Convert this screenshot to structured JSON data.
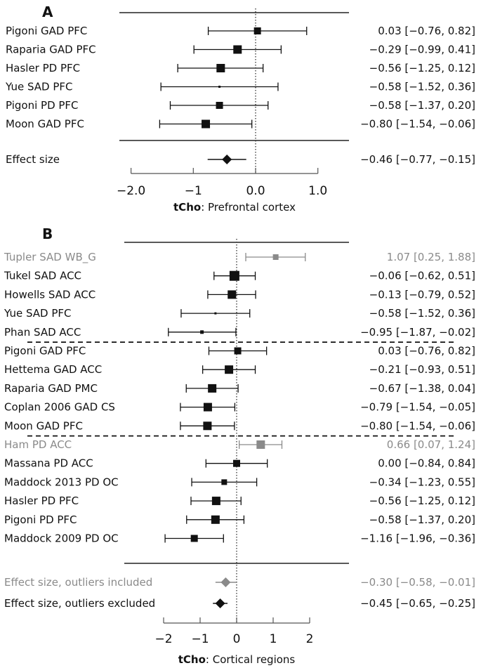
{
  "chart_data": [
    {
      "type": "forest",
      "panel_label": "A",
      "xlabel_bold": "tCho",
      "xlabel_rest": ": Prefrontal cortex",
      "xlim": [
        -2.0,
        1.0
      ],
      "ticks": [
        {
          "value": -2.0,
          "label": "−2.0"
        },
        {
          "value": -1.0,
          "label": "−1"
        },
        {
          "value": 0.0,
          "label": "0.0"
        },
        {
          "value": 1.0,
          "label": "1.0"
        }
      ],
      "reference_line": 0,
      "studies": [
        {
          "label": "Pigoni GAD PFC",
          "est": 0.03,
          "lo": -0.76,
          "hi": 0.82,
          "text": "0.03 [−0.76, 0.82]",
          "weight": "medium",
          "outlier": false
        },
        {
          "label": "Raparia GAD PFC",
          "est": -0.29,
          "lo": -0.99,
          "hi": 0.41,
          "text": "−0.29 [−0.99, 0.41]",
          "weight": "large",
          "outlier": false
        },
        {
          "label": "Hasler PD PFC",
          "est": -0.56,
          "lo": -1.25,
          "hi": 0.12,
          "text": "−0.56 [−1.25, 0.12]",
          "weight": "large",
          "outlier": false
        },
        {
          "label": "Yue SAD PFC",
          "est": -0.58,
          "lo": -1.52,
          "hi": 0.36,
          "text": "−0.58 [−1.52, 0.36]",
          "weight": "tiny",
          "outlier": false
        },
        {
          "label": "Pigoni PD PFC",
          "est": -0.58,
          "lo": -1.37,
          "hi": 0.2,
          "text": "−0.58 [−1.37, 0.20]",
          "weight": "medium",
          "outlier": false
        },
        {
          "label": "Moon GAD PFC",
          "est": -0.8,
          "lo": -1.54,
          "hi": -0.06,
          "text": "−0.80 [−1.54, −0.06]",
          "weight": "large",
          "outlier": false
        }
      ],
      "group_separators_after": [],
      "summaries": [
        {
          "label": "Effect size",
          "est": -0.46,
          "lo": -0.77,
          "hi": -0.15,
          "text": "−0.46 [−0.77, −0.15]",
          "gray": false
        }
      ]
    },
    {
      "type": "forest",
      "panel_label": "B",
      "xlabel_bold": "tCho",
      "xlabel_rest": ": Cortical regions",
      "xlim": [
        -2,
        2
      ],
      "ticks": [
        {
          "value": -2,
          "label": "−2"
        },
        {
          "value": -1,
          "label": "−1"
        },
        {
          "value": 0,
          "label": "0"
        },
        {
          "value": 1,
          "label": "1"
        },
        {
          "value": 2,
          "label": "2"
        }
      ],
      "reference_line": 0,
      "studies": [
        {
          "label": "Tupler SAD WB_G",
          "est": 1.07,
          "lo": 0.25,
          "hi": 1.88,
          "text": "1.07 [0.25, 1.88]",
          "weight": "small",
          "outlier": true
        },
        {
          "label": "Tukel SAD ACC",
          "est": -0.06,
          "lo": -0.62,
          "hi": 0.51,
          "text": "−0.06 [−0.62, 0.51]",
          "weight": "xlarge",
          "outlier": false
        },
        {
          "label": "Howells SAD ACC",
          "est": -0.13,
          "lo": -0.79,
          "hi": 0.52,
          "text": "−0.13 [−0.79, 0.52]",
          "weight": "large",
          "outlier": false
        },
        {
          "label": "Yue SAD PFC",
          "est": -0.58,
          "lo": -1.52,
          "hi": 0.36,
          "text": "−0.58 [−1.52, 0.36]",
          "weight": "tiny",
          "outlier": false
        },
        {
          "label": "Phan SAD ACC",
          "est": -0.95,
          "lo": -1.87,
          "hi": -0.02,
          "text": "−0.95 [−1.87, −0.02]",
          "weight": "tinysmall",
          "outlier": false
        },
        {
          "label": "Pigoni GAD PFC",
          "est": 0.03,
          "lo": -0.76,
          "hi": 0.82,
          "text": "0.03 [−0.76, 0.82]",
          "weight": "medium",
          "outlier": false
        },
        {
          "label": "Hettema GAD ACC",
          "est": -0.21,
          "lo": -0.93,
          "hi": 0.51,
          "text": "−0.21 [−0.93, 0.51]",
          "weight": "large",
          "outlier": false
        },
        {
          "label": "Raparia GAD PMC",
          "est": -0.67,
          "lo": -1.38,
          "hi": 0.04,
          "text": "−0.67 [−1.38, 0.04]",
          "weight": "large",
          "outlier": false
        },
        {
          "label": "Coplan 2006 GAD CS",
          "est": -0.79,
          "lo": -1.54,
          "hi": -0.05,
          "text": "−0.79 [−1.54, −0.05]",
          "weight": "large",
          "outlier": false
        },
        {
          "label": "Moon GAD PFC",
          "est": -0.8,
          "lo": -1.54,
          "hi": -0.06,
          "text": "−0.80 [−1.54, −0.06]",
          "weight": "large",
          "outlier": false
        },
        {
          "label": "Ham PD ACC",
          "est": 0.66,
          "lo": 0.07,
          "hi": 1.24,
          "text": "0.66 [0.07, 1.24]",
          "weight": "large",
          "outlier": true
        },
        {
          "label": "Massana PD ACC",
          "est": 0.0,
          "lo": -0.84,
          "hi": 0.84,
          "text": "0.00 [−0.84, 0.84]",
          "weight": "medium",
          "outlier": false
        },
        {
          "label": "Maddock 2013 PD OC",
          "est": -0.34,
          "lo": -1.23,
          "hi": 0.55,
          "text": "−0.34 [−1.23, 0.55]",
          "weight": "small",
          "outlier": false
        },
        {
          "label": "Hasler PD PFC",
          "est": -0.56,
          "lo": -1.25,
          "hi": 0.12,
          "text": "−0.56 [−1.25, 0.12]",
          "weight": "large",
          "outlier": false
        },
        {
          "label": "Pigoni PD PFC",
          "est": -0.58,
          "lo": -1.37,
          "hi": 0.2,
          "text": "−0.58 [−1.37, 0.20]",
          "weight": "large",
          "outlier": false
        },
        {
          "label": "Maddock 2009 PD OC",
          "est": -1.16,
          "lo": -1.96,
          "hi": -0.36,
          "text": "−1.16 [−1.96, −0.36]",
          "weight": "medium",
          "outlier": false
        }
      ],
      "group_separators_after": [
        4,
        9
      ],
      "summaries": [
        {
          "label": "Effect size, outliers included",
          "est": -0.3,
          "lo": -0.58,
          "hi": -0.01,
          "text": "−0.30 [−0.58, −0.01]",
          "gray": true
        },
        {
          "label": "Effect size, outliers excluded",
          "est": -0.45,
          "lo": -0.65,
          "hi": -0.25,
          "text": "−0.45 [−0.65, −0.25]",
          "gray": false
        }
      ]
    }
  ],
  "colors": {
    "main": "#111111",
    "outlier": "#8a8a8a",
    "axis": "#555555"
  }
}
